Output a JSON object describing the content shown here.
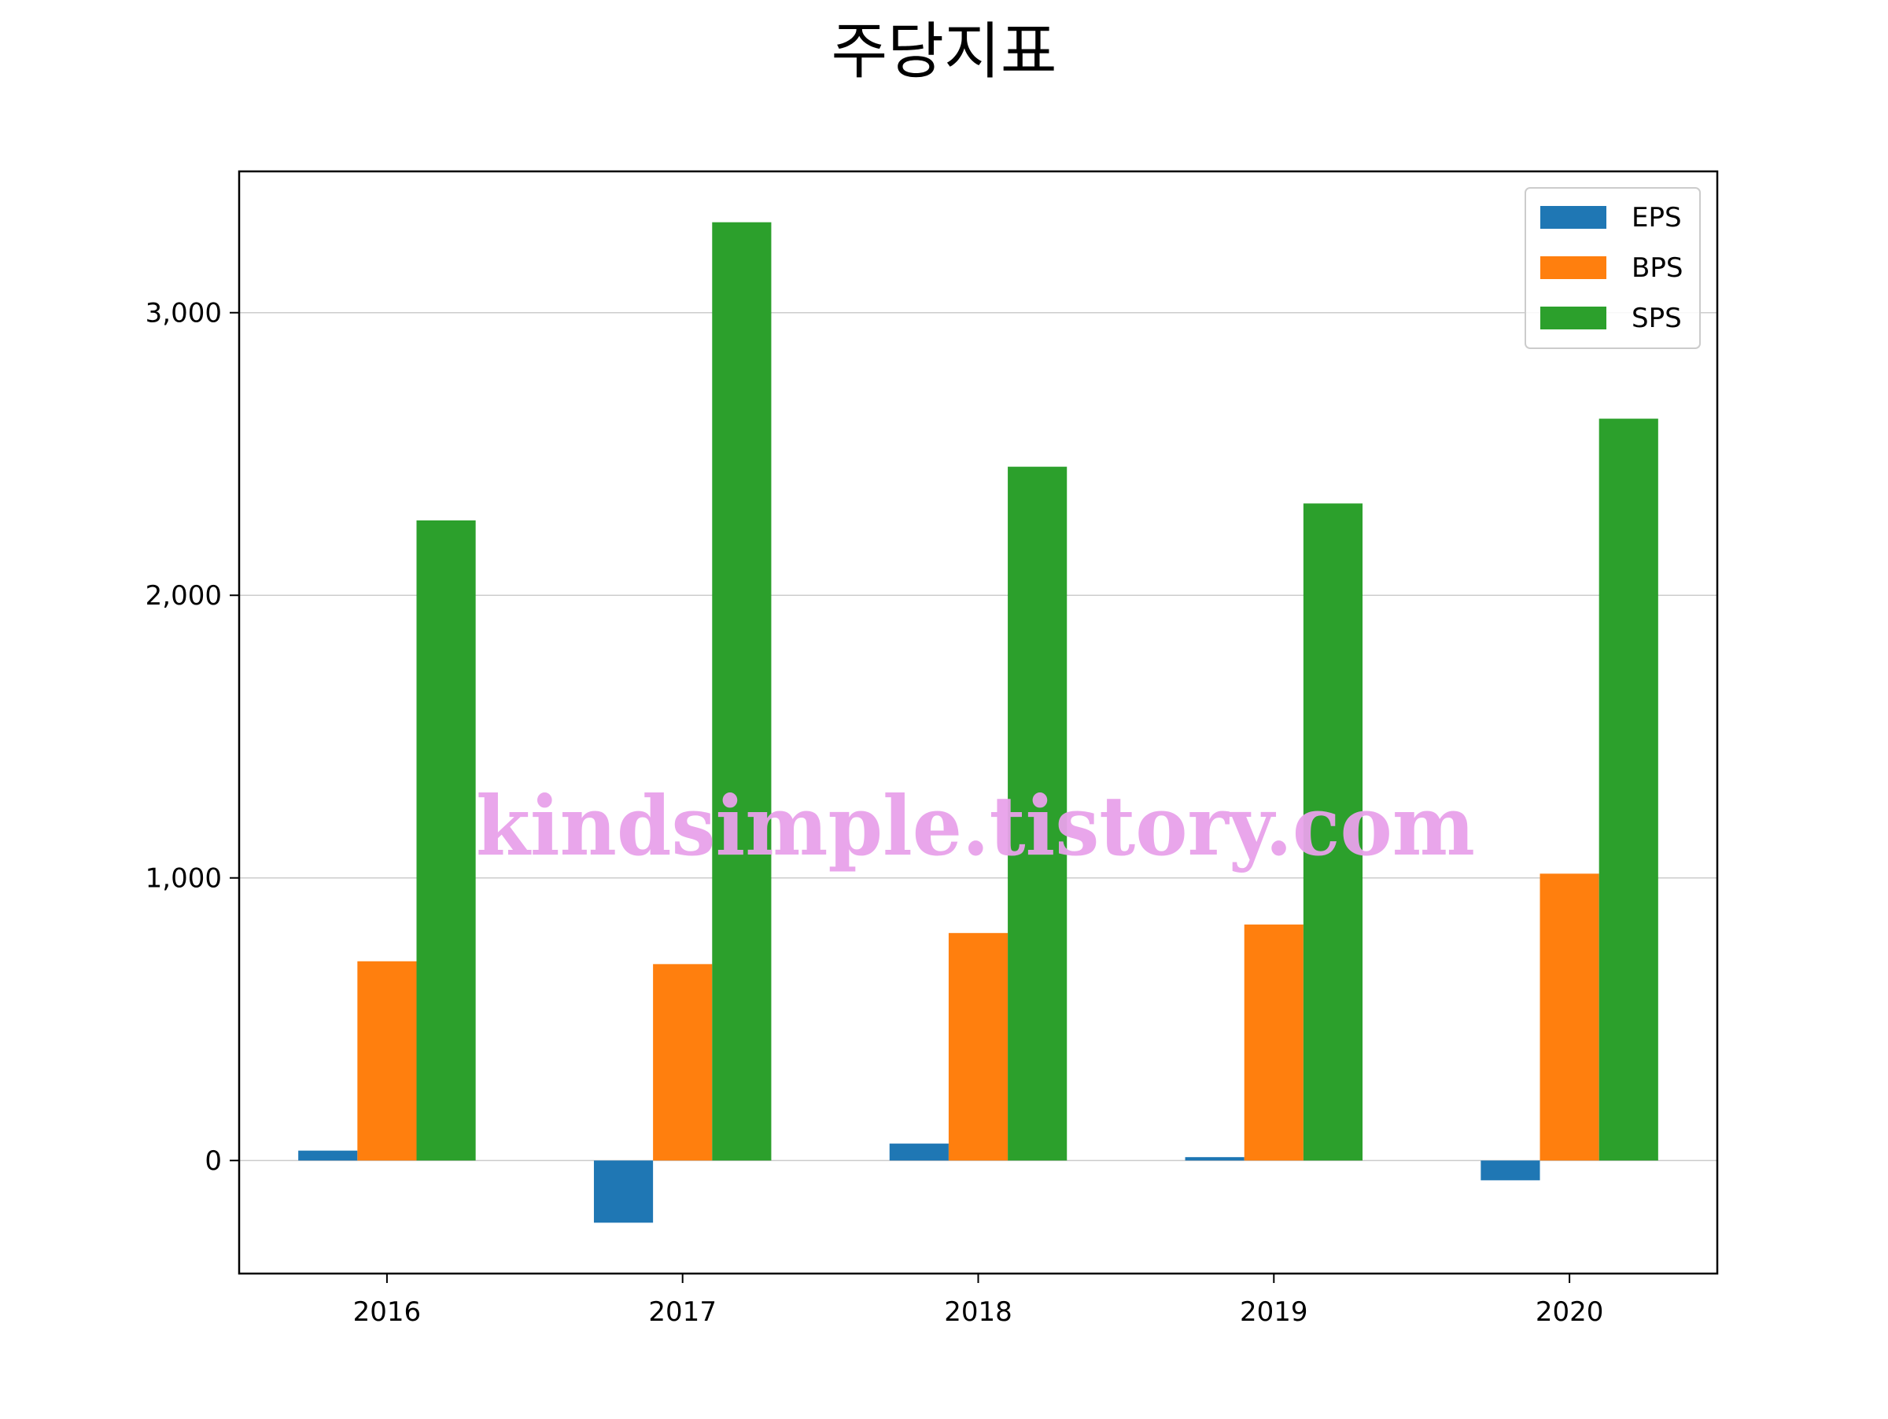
{
  "chart_data": {
    "type": "bar",
    "title": "주당지표",
    "xlabel": "",
    "ylabel": "",
    "categories": [
      "2016",
      "2017",
      "2018",
      "2019",
      "2020"
    ],
    "series": [
      {
        "name": "EPS",
        "color": "#1f77b4",
        "values": [
          35,
          -220,
          60,
          12,
          -70
        ]
      },
      {
        "name": "BPS",
        "color": "#ff7f0e",
        "values": [
          705,
          695,
          805,
          835,
          1015
        ]
      },
      {
        "name": "SPS",
        "color": "#2ca02c",
        "values": [
          2265,
          3320,
          2455,
          2325,
          2625
        ]
      }
    ],
    "ylim": [
      -400,
      3500
    ],
    "yticks": [
      0,
      1000,
      2000,
      3000
    ],
    "ytick_labels": [
      "0",
      "1,000",
      "2,000",
      "3,000"
    ],
    "grid": "horizontal",
    "legend_position": "top-right"
  },
  "watermark": "kindsimple.tistory.com"
}
